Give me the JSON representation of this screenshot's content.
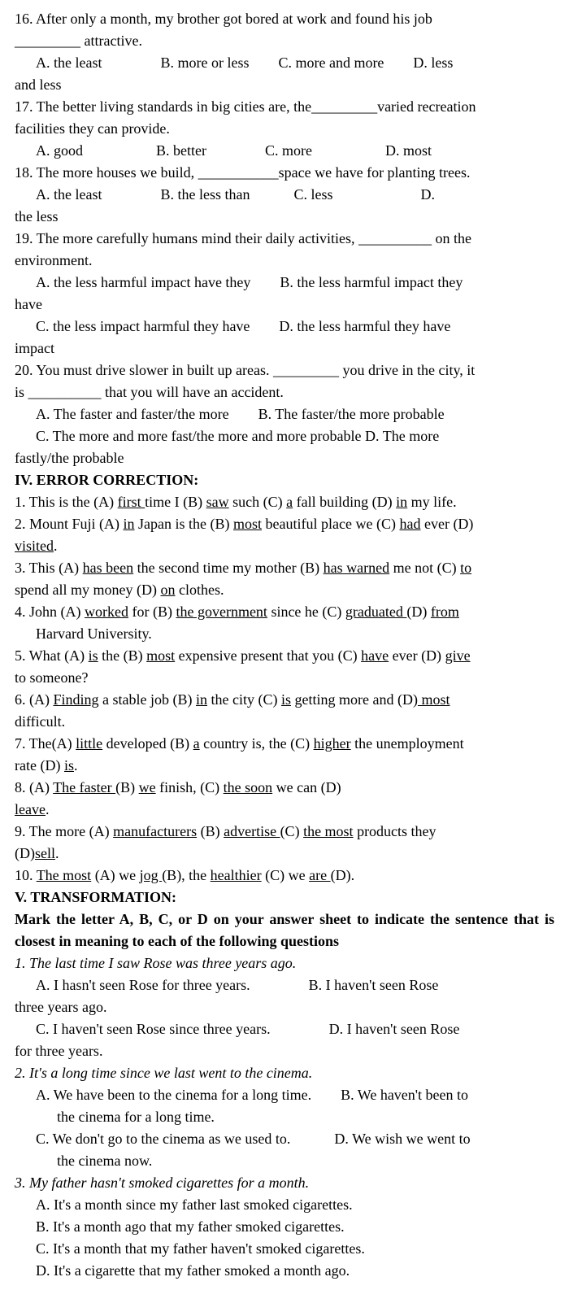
{
  "q16": {
    "text_l1": "16. After only a month, my brother got bored at work and found his job",
    "text_l2": "_________ attractive.",
    "opts": "A. the least    B. more or less  C. more and more  D. less",
    "tail": "and less"
  },
  "q17": {
    "text_l1": "17. The better living standards in big cities are, the_________varied recreation",
    "text_l2": "facilities they can provide.",
    "opts": "A. good     B. better    C. more     D. most"
  },
  "q18": {
    "text": "18. The more houses we build, ___________space we have for planting trees.",
    "opts": "A. the least    B. the less than   C. less      D.",
    "tail": "the less"
  },
  "q19": {
    "text_l1": "19.  The more carefully humans mind their daily activities, __________ on the",
    "text_l2": "environment.",
    "opts_l1": "A. the less harmful impact have they  B. the less harmful impact they",
    "opts_l1b": "have",
    "opts_l2": "C. the less impact harmful they have  D. the less harmful they have",
    "opts_l2b": "impact"
  },
  "q20": {
    "text_l1": "20. You must drive slower in built up areas. _________ you drive in the city, it",
    "text_l2": "is __________ that you will have an accident.",
    "opts_l1": "A. The faster and faster/the more  B. The faster/the more probable",
    "opts_l2": "C. The more and more fast/the more and more probable D. The more",
    "opts_l3": "fastly/the probable"
  },
  "section4": {
    "title": "IV. ERROR CORRECTION:"
  },
  "e1": {
    "pre": "1. This is the (A) ",
    "u1": "first ",
    "m1": "time I (B) ",
    "u2": "saw",
    "m2": " such (C) ",
    "u3": "a",
    "m3": " fall building (D) ",
    "u4": "in",
    "post": " my life."
  },
  "e2": {
    "pre": "2. Mount Fuji (A) ",
    "u1": "in",
    "m1": " Japan is the (B) ",
    "u2": "most",
    "m2": " beautiful place we (C) ",
    "u3": "had",
    "m3": " ever (D)",
    "u4_l2": "visited",
    "post": "."
  },
  "e3": {
    "pre": "3. This (A) ",
    "u1": "has been",
    "m1": " the second time my mother (B) ",
    "u2": "has warned",
    "m2": " me not (C) ",
    "u3": "to",
    "l2": "spend all my money (D) ",
    "u4": "on",
    "post": " clothes."
  },
  "e4": {
    "pre": "4. John (A) ",
    "u1": " worked",
    "m1": " for (B)  ",
    "u2": "the government",
    "m2": " since he (C) ",
    "u3": " graduated ",
    "m3": "(D) ",
    "u4": " from",
    "l2": "Harvard University."
  },
  "e5": {
    "pre": "5. What (A) ",
    "u1": "is",
    "m1": " the (B) ",
    "u2": "most",
    "m2": " expensive present that you (C) ",
    "u3": "have",
    "m3": " ever (D) ",
    "u4": "give",
    "l2": "to someone?"
  },
  "e6": {
    "pre": "6. (A) ",
    "u1": "Finding",
    "m1": " a stable job (B) ",
    "u2": "in",
    "m2": " the city (C) ",
    "u3": "is",
    "m3": " getting more and (D)",
    "u4": " most",
    "l2": "difficult."
  },
  "e7": {
    "pre": "7. The(A) ",
    "u1": "little",
    "m1": " developed (B) ",
    "u2": "a",
    "m2": " country is, the (C) ",
    "u3": "higher",
    "m3": " the unemployment",
    "l2": "rate (D) ",
    "u4": "is",
    "post": "."
  },
  "e8": {
    "pre": "8. (A) ",
    "u1": "The faster ",
    "m1": "(B)  ",
    "u2": "we",
    "m2": " finish, (C) ",
    "u3": " the soon",
    "m3": " we can (D)",
    "u4_l2": "leave",
    "post": "."
  },
  "e9": {
    "pre": "9. The more (A) ",
    "u1": "manufacturers",
    "m1": "  (B) ",
    "u2": "advertise ",
    "m2": "(C) ",
    "u3": "the most",
    "m3": " products they",
    "l2": "(D)",
    "u4": "sell",
    "post": "."
  },
  "e10": {
    "u1": "The most",
    "m1": " (A) we ",
    "u2": "jog ",
    "m2": "(B), the ",
    "u3": "healthier",
    "m3": " (C) we ",
    "u4": "are ",
    "post": "(D).",
    "pre": "10. "
  },
  "section5": {
    "title": "V. TRANSFORMATION:",
    "sub_l1": "Mark the letter A, B, C, or D on your answer sheet to indicate the",
    "sub_l2": "sentence that is closest in meaning to each of the following questions"
  },
  "t1": {
    "q": "1. The last time I saw Rose was three years ago.",
    "a": "A. I hasn't seen Rose for three years.    B. I haven't seen Rose",
    "a_tail": "three years ago.",
    "c": "C. I haven't seen Rose since three years.    D. I haven't seen Rose",
    "c_tail": "for three years."
  },
  "t2": {
    "q": "2. It's a long time since we last went to the cinema.",
    "a": "A. We have been to the cinema for a long time.  B. We haven't been to",
    "a2": "the cinema for a long time.",
    "c": "C. We don't go to the cinema as we used to.   D. We wish we went to",
    "c2": "the cinema now."
  },
  "t3": {
    "q": "3. My father hasn't smoked cigarettes for a month.",
    "a": "A. It's a month since my father last smoked cigarettes.",
    "b": "B. It's a month ago that my father smoked cigarettes.",
    "c": "C. It's a month that my father haven't smoked cigarettes.",
    "d": "D. It's a cigarette that my father smoked a month ago."
  }
}
